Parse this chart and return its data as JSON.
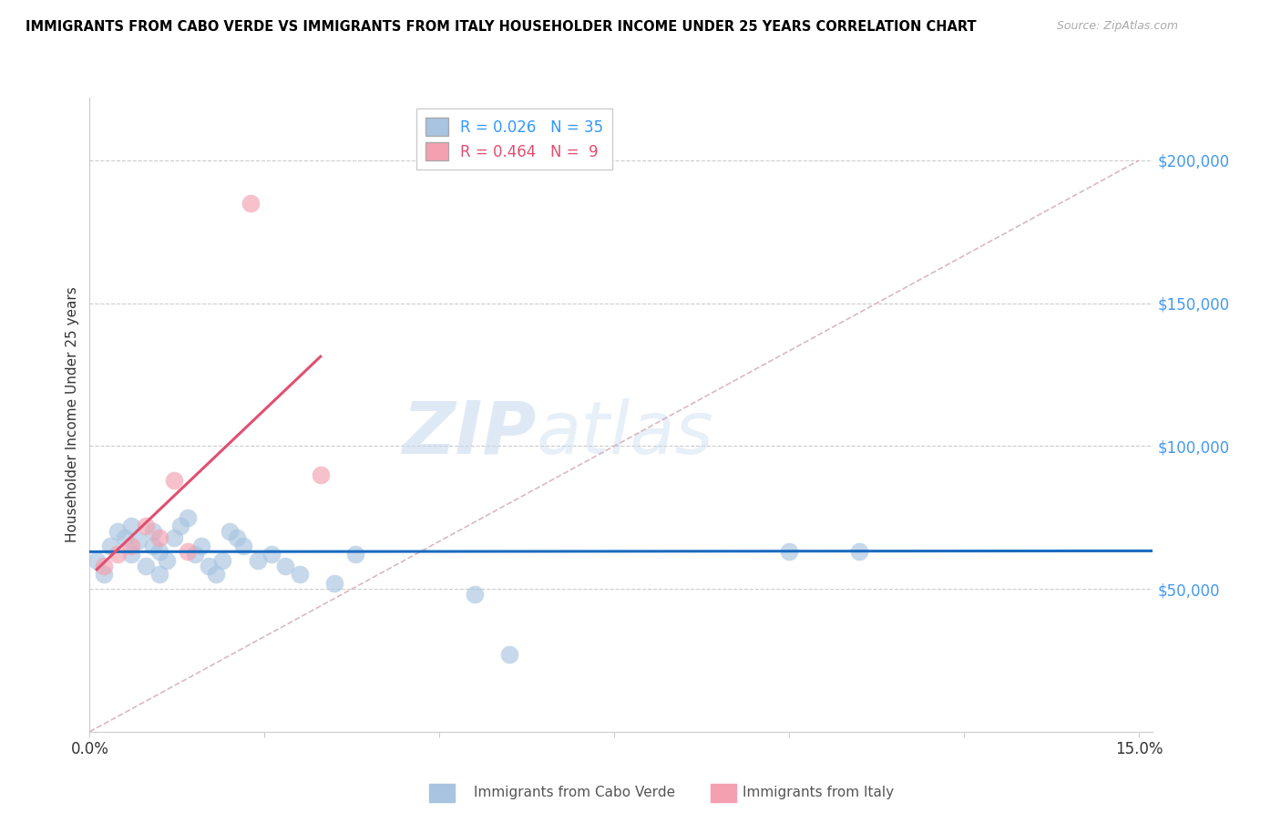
{
  "title": "IMMIGRANTS FROM CABO VERDE VS IMMIGRANTS FROM ITALY HOUSEHOLDER INCOME UNDER 25 YEARS CORRELATION CHART",
  "source": "Source: ZipAtlas.com",
  "ylabel": "Householder Income Under 25 years",
  "xlim": [
    0.0,
    0.15
  ],
  "ylim": [
    0,
    220000
  ],
  "cabo_verde_R": "0.026",
  "cabo_verde_N": "35",
  "italy_R": "0.464",
  "italy_N": "9",
  "cabo_verde_color": "#a8c4e0",
  "italy_color": "#f4a0b0",
  "cabo_verde_line_color": "#1a6bbf",
  "italy_line_color": "#e05070",
  "diagonal_color": "#d0a8b0",
  "watermark_zip": "ZIP",
  "watermark_atlas": "atlas",
  "cabo_verde_x": [
    0.001,
    0.002,
    0.003,
    0.004,
    0.005,
    0.006,
    0.006,
    0.007,
    0.008,
    0.009,
    0.009,
    0.01,
    0.01,
    0.011,
    0.012,
    0.013,
    0.014,
    0.015,
    0.016,
    0.017,
    0.018,
    0.019,
    0.02,
    0.021,
    0.022,
    0.024,
    0.026,
    0.028,
    0.03,
    0.035,
    0.038,
    0.055,
    0.06,
    0.1,
    0.11
  ],
  "cabo_verde_y": [
    60000,
    55000,
    65000,
    70000,
    68000,
    62000,
    72000,
    67000,
    58000,
    65000,
    70000,
    63000,
    55000,
    60000,
    68000,
    72000,
    75000,
    62000,
    65000,
    58000,
    55000,
    60000,
    70000,
    68000,
    65000,
    60000,
    62000,
    58000,
    55000,
    52000,
    62000,
    48000,
    27000,
    63000,
    63000
  ],
  "italy_x": [
    0.002,
    0.004,
    0.006,
    0.008,
    0.01,
    0.012,
    0.014,
    0.023,
    0.033
  ],
  "italy_y": [
    58000,
    62000,
    65000,
    72000,
    68000,
    88000,
    63000,
    185000,
    90000
  ],
  "italy_line_x_start": 0.001,
  "italy_line_x_end": 0.033,
  "cabo_line_y_intercept": 63000,
  "cabo_line_slope": 50000,
  "xticks": [
    0.0,
    0.025,
    0.05,
    0.075,
    0.1,
    0.125,
    0.15
  ],
  "xtick_labels_show": [
    "0.0%",
    "",
    "",
    "",
    "",
    "",
    "15.0%"
  ],
  "ytick_values": [
    50000,
    100000,
    150000,
    200000
  ],
  "ytick_labels": [
    "$50,000",
    "$100,000",
    "$150,000",
    "$200,000"
  ]
}
